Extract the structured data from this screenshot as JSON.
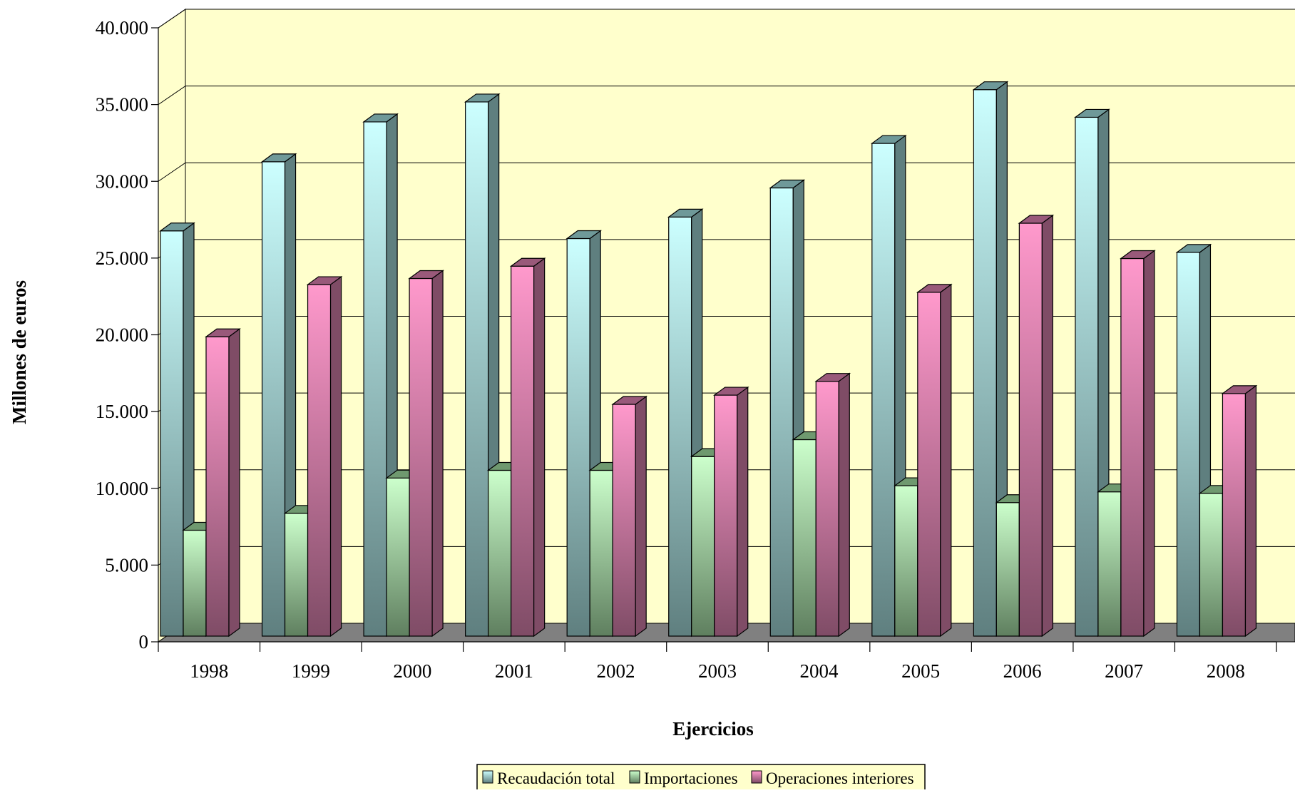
{
  "chart_data": {
    "type": "bar",
    "title": "",
    "xlabel": "Ejercicios",
    "ylabel": "Millones de euros",
    "ylim": [
      0,
      40000
    ],
    "yticks": [
      "0",
      "5.000",
      "10.000",
      "15.000",
      "20.000",
      "25.000",
      "30.000",
      "35.000",
      "40.000"
    ],
    "ytick_values": [
      0,
      5000,
      10000,
      15000,
      20000,
      25000,
      30000,
      35000,
      40000
    ],
    "grid": true,
    "legend_position": "bottom",
    "categories": [
      "1998",
      "1999",
      "2000",
      "2001",
      "2002",
      "2003",
      "2004",
      "2005",
      "2006",
      "2007",
      "2008"
    ],
    "series": [
      {
        "name": "Recaudación total",
        "values": [
          26400,
          30900,
          33500,
          34800,
          25900,
          27300,
          29200,
          32100,
          35600,
          33800,
          25000
        ]
      },
      {
        "name": "Importaciones",
        "values": [
          6900,
          8000,
          10300,
          10800,
          10800,
          11700,
          12800,
          9800,
          8700,
          9400,
          9300
        ]
      },
      {
        "name": "Operaciones interiores",
        "values": [
          19500,
          22900,
          23300,
          24100,
          15100,
          15700,
          16600,
          22400,
          26900,
          24600,
          15800
        ]
      }
    ]
  },
  "colors": {
    "wall": "#ffffcc",
    "floor": "#808080",
    "gridline": "#000000",
    "series": [
      {
        "top": "#ccffff",
        "bottom": "#5f7f7f",
        "side": "#5f7f7f",
        "cap": "#6f9999"
      },
      {
        "top": "#ccffcc",
        "bottom": "#5f7f5f",
        "side": "#5f7f5f",
        "cap": "#6f996f"
      },
      {
        "top": "#ff99cc",
        "bottom": "#7f4c66",
        "side": "#7f4c66",
        "cap": "#99597a"
      }
    ]
  }
}
